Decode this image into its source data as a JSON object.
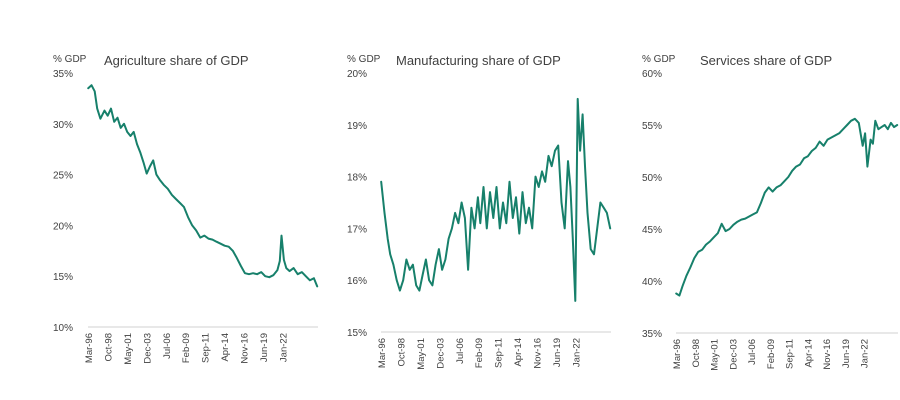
{
  "chart_data": [
    {
      "type": "line",
      "title": "Agriculture share of GDP",
      "ylabel": "% GDP",
      "ylim": [
        10,
        35
      ],
      "y_ticks": [
        "35%",
        "30%",
        "25%",
        "20%",
        "15%",
        "10%"
      ],
      "x_ticks": [
        "Mar-96",
        "Oct-98",
        "May-01",
        "Dec-03",
        "Jul-06",
        "Feb-09",
        "Sep-11",
        "Apr-14",
        "Nov-16",
        "Jun-19",
        "Jan-22"
      ],
      "x_range": [
        1996.17,
        2024.5
      ],
      "grid": false,
      "series": [
        {
          "color": "#17806b",
          "x": [
            1996.2,
            1996.6,
            1997.0,
            1997.3,
            1997.7,
            1998.2,
            1998.6,
            1999.0,
            1999.4,
            1999.8,
            2000.2,
            2000.6,
            2001.0,
            2001.4,
            2001.8,
            2002.2,
            2002.6,
            2003.0,
            2003.4,
            2003.8,
            2004.2,
            2004.6,
            2005.0,
            2005.5,
            2006.0,
            2006.5,
            2007.0,
            2007.5,
            2008.0,
            2008.5,
            2009.0,
            2009.5,
            2010.0,
            2010.5,
            2011.0,
            2011.5,
            2012.0,
            2012.5,
            2013.0,
            2013.5,
            2014.0,
            2014.5,
            2015.0,
            2015.5,
            2016.0,
            2016.5,
            2017.0,
            2017.5,
            2018.0,
            2018.5,
            2019.0,
            2019.5,
            2019.8,
            2020.0,
            2020.3,
            2020.6,
            2021.0,
            2021.5,
            2022.0,
            2022.5,
            2023.0,
            2023.5,
            2024.0,
            2024.4
          ],
          "y": [
            33.5,
            33.8,
            33.2,
            31.5,
            30.5,
            31.3,
            30.8,
            31.5,
            30.2,
            30.6,
            29.6,
            30.0,
            29.2,
            28.8,
            29.2,
            28.0,
            27.2,
            26.2,
            25.1,
            25.8,
            26.4,
            25.0,
            24.5,
            24.0,
            23.6,
            23.0,
            22.6,
            22.2,
            21.8,
            20.8,
            20.0,
            19.5,
            18.8,
            19.0,
            18.7,
            18.6,
            18.4,
            18.2,
            18.0,
            17.9,
            17.5,
            16.8,
            16.0,
            15.3,
            15.2,
            15.3,
            15.2,
            15.4,
            15.0,
            14.9,
            15.1,
            15.6,
            16.5,
            19.0,
            16.6,
            15.8,
            15.5,
            15.8,
            15.2,
            15.4,
            15.0,
            14.6,
            14.8,
            14.0
          ]
        }
      ]
    },
    {
      "type": "line",
      "title": "Manufacturing share of GDP",
      "ylabel": "% GDP",
      "ylim": [
        15,
        20
      ],
      "y_ticks": [
        "20%",
        "19%",
        "18%",
        "17%",
        "16%",
        "15%"
      ],
      "x_ticks": [
        "Mar-96",
        "Oct-98",
        "May-01",
        "Dec-03",
        "Jul-06",
        "Feb-09",
        "Sep-11",
        "Apr-14",
        "Nov-16",
        "Jun-19",
        "Jan-22"
      ],
      "x_range": [
        1996.17,
        2024.5
      ],
      "grid": false,
      "series": [
        {
          "color": "#17806b",
          "x": [
            1996.2,
            1996.6,
            1997.0,
            1997.3,
            1997.7,
            1998.1,
            1998.5,
            1998.9,
            1999.3,
            1999.7,
            2000.1,
            2000.5,
            2000.9,
            2001.3,
            2001.7,
            2002.1,
            2002.5,
            2002.9,
            2003.3,
            2003.7,
            2004.1,
            2004.5,
            2004.9,
            2005.3,
            2005.7,
            2006.1,
            2006.5,
            2006.9,
            2007.3,
            2007.7,
            2008.1,
            2008.4,
            2008.8,
            2009.2,
            2009.6,
            2010.0,
            2010.4,
            2010.8,
            2011.2,
            2011.6,
            2012.0,
            2012.4,
            2012.8,
            2013.2,
            2013.6,
            2014.0,
            2014.4,
            2014.8,
            2015.2,
            2015.6,
            2016.0,
            2016.4,
            2016.8,
            2017.2,
            2017.6,
            2018.0,
            2018.4,
            2018.8,
            2019.2,
            2019.5,
            2019.8,
            2020.1,
            2020.4,
            2020.7,
            2021.0,
            2021.3,
            2021.6,
            2022.0,
            2022.4,
            2022.8,
            2023.2,
            2023.6,
            2024.0,
            2024.4
          ],
          "y": [
            17.9,
            17.3,
            16.8,
            16.5,
            16.3,
            16.0,
            15.8,
            16.0,
            16.4,
            16.2,
            16.3,
            15.9,
            15.8,
            16.1,
            16.4,
            16.0,
            15.9,
            16.3,
            16.6,
            16.2,
            16.4,
            16.8,
            17.0,
            17.3,
            17.1,
            17.5,
            17.2,
            16.2,
            17.4,
            17.0,
            17.6,
            17.1,
            17.8,
            17.0,
            17.7,
            17.2,
            17.8,
            17.0,
            17.5,
            17.1,
            17.9,
            17.2,
            17.6,
            16.9,
            17.7,
            17.1,
            17.4,
            17.0,
            18.0,
            17.8,
            18.1,
            17.9,
            18.4,
            18.2,
            18.5,
            18.6,
            17.5,
            17.0,
            18.3,
            17.8,
            16.8,
            15.6,
            19.5,
            18.5,
            19.2,
            18.2,
            17.3,
            16.6,
            16.5,
            17.0,
            17.5,
            17.4,
            17.3,
            17.0
          ]
        }
      ]
    },
    {
      "type": "line",
      "title": "Services share of GDP",
      "ylabel": "% GDP",
      "ylim": [
        35,
        60
      ],
      "y_ticks": [
        "60%",
        "55%",
        "50%",
        "45%",
        "40%",
        "35%"
      ],
      "x_ticks": [
        "Mar-96",
        "Oct-98",
        "May-01",
        "Dec-03",
        "Jul-06",
        "Feb-09",
        "Sep-11",
        "Apr-14",
        "Nov-16",
        "Jun-19",
        "Jan-22"
      ],
      "x_range": [
        1996.17,
        2024.5
      ],
      "grid": false,
      "series": [
        {
          "color": "#17806b",
          "x": [
            1996.2,
            1996.6,
            1997.0,
            1997.5,
            1998.0,
            1998.5,
            1999.0,
            1999.5,
            2000.0,
            2000.5,
            2001.0,
            2001.5,
            2002.0,
            2002.5,
            2003.0,
            2003.5,
            2004.0,
            2004.5,
            2005.0,
            2005.5,
            2006.0,
            2006.5,
            2007.0,
            2007.5,
            2008.0,
            2008.5,
            2009.0,
            2009.5,
            2010.0,
            2010.5,
            2011.0,
            2011.5,
            2012.0,
            2012.5,
            2013.0,
            2013.5,
            2014.0,
            2014.5,
            2015.0,
            2015.5,
            2016.0,
            2016.5,
            2017.0,
            2017.5,
            2018.0,
            2018.5,
            2019.0,
            2019.5,
            2020.0,
            2020.3,
            2020.6,
            2021.0,
            2021.3,
            2021.6,
            2022.0,
            2022.4,
            2022.8,
            2023.2,
            2023.6,
            2024.0,
            2024.4
          ],
          "y": [
            38.8,
            38.6,
            39.5,
            40.5,
            41.3,
            42.2,
            42.8,
            43.0,
            43.5,
            43.8,
            44.2,
            44.6,
            45.5,
            44.8,
            45.0,
            45.4,
            45.7,
            45.9,
            46.0,
            46.2,
            46.4,
            46.6,
            47.5,
            48.5,
            49.0,
            48.6,
            49.0,
            49.2,
            49.6,
            50.0,
            50.6,
            51.0,
            51.2,
            51.8,
            52.0,
            52.5,
            52.8,
            53.4,
            53.0,
            53.6,
            53.8,
            54.0,
            54.2,
            54.6,
            55.0,
            55.4,
            55.6,
            55.2,
            53.0,
            54.2,
            51.0,
            53.6,
            53.2,
            55.4,
            54.6,
            54.8,
            55.0,
            54.6,
            55.2,
            54.8,
            55.0
          ]
        }
      ]
    }
  ]
}
